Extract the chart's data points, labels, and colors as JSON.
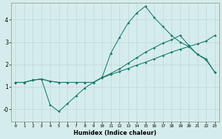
{
  "xlabel": "Humidex (Indice chaleur)",
  "bg_color": "#d5ecec",
  "grid_color": "#b8d8d8",
  "line_color": "#1a7a6e",
  "xlim": [
    -0.5,
    23.5
  ],
  "ylim": [
    -0.55,
    4.75
  ],
  "xticks": [
    0,
    1,
    2,
    3,
    4,
    5,
    6,
    7,
    8,
    9,
    10,
    11,
    12,
    13,
    14,
    15,
    16,
    17,
    18,
    19,
    20,
    21,
    22,
    23
  ],
  "yticks": [
    0,
    1,
    2,
    3,
    4
  ],
  "ytick_labels": [
    "-0",
    "1",
    "2",
    "3",
    "4"
  ],
  "line1_x": [
    0,
    1,
    2,
    3,
    4,
    5,
    6,
    7,
    8,
    9,
    10,
    11,
    12,
    13,
    14,
    15,
    16,
    17,
    18,
    19,
    20,
    21,
    22,
    23
  ],
  "line1_y": [
    1.2,
    1.2,
    1.3,
    1.35,
    0.2,
    -0.1,
    0.25,
    0.6,
    0.95,
    1.2,
    1.42,
    2.5,
    3.2,
    3.85,
    4.3,
    4.6,
    4.1,
    3.7,
    3.3,
    3.0,
    2.8,
    2.45,
    2.2,
    1.65
  ],
  "line2_x": [
    0,
    1,
    2,
    3,
    4,
    5,
    6,
    7,
    8,
    9,
    10,
    11,
    12,
    13,
    14,
    15,
    16,
    17,
    18,
    19,
    20,
    21,
    22,
    23
  ],
  "line2_y": [
    1.2,
    1.2,
    1.3,
    1.35,
    1.25,
    1.2,
    1.2,
    1.2,
    1.2,
    1.2,
    1.42,
    1.6,
    1.8,
    2.05,
    2.3,
    2.55,
    2.75,
    2.95,
    3.1,
    3.3,
    2.85,
    2.45,
    2.25,
    1.65
  ],
  "line3_x": [
    0,
    1,
    2,
    3,
    4,
    5,
    6,
    7,
    8,
    9,
    10,
    11,
    12,
    13,
    14,
    15,
    16,
    17,
    18,
    19,
    20,
    21,
    22,
    23
  ],
  "line3_y": [
    1.2,
    1.2,
    1.3,
    1.35,
    1.25,
    1.2,
    1.2,
    1.2,
    1.2,
    1.2,
    1.4,
    1.55,
    1.68,
    1.82,
    1.97,
    2.1,
    2.25,
    2.4,
    2.55,
    2.68,
    2.8,
    2.92,
    3.05,
    3.3
  ]
}
